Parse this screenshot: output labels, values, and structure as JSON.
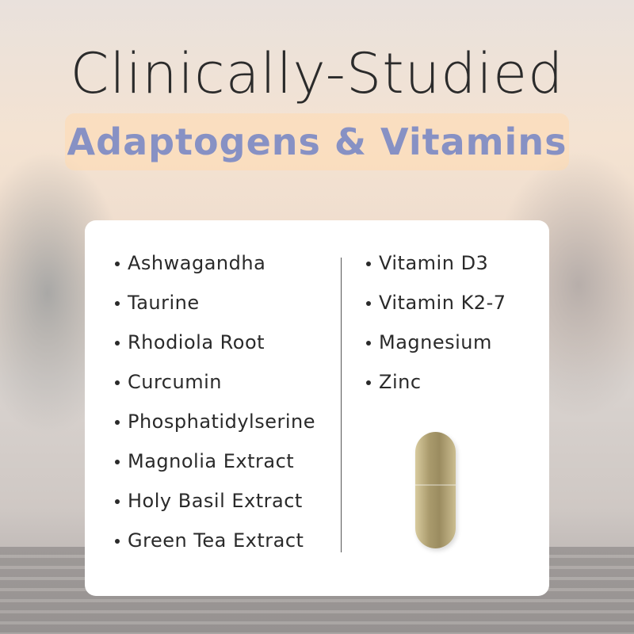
{
  "header": {
    "title": "Clinically-Studied",
    "subtitle": "Adaptogens & Vitamins"
  },
  "colors": {
    "subtitle_text": "#8791c4",
    "banner_bg": "#ffdab0",
    "title_text": "#2b2b2b"
  },
  "ingredients": {
    "adaptogens": [
      "Ashwagandha",
      "Taurine",
      "Rhodiola Root",
      "Curcumin",
      "Phosphatidylserine",
      "Magnolia Extract",
      "Holy Basil Extract",
      "Green Tea Extract"
    ],
    "vitamins": [
      "Vitamin D3",
      "Vitamin K2-7",
      "Magnesium",
      "Zinc"
    ]
  }
}
